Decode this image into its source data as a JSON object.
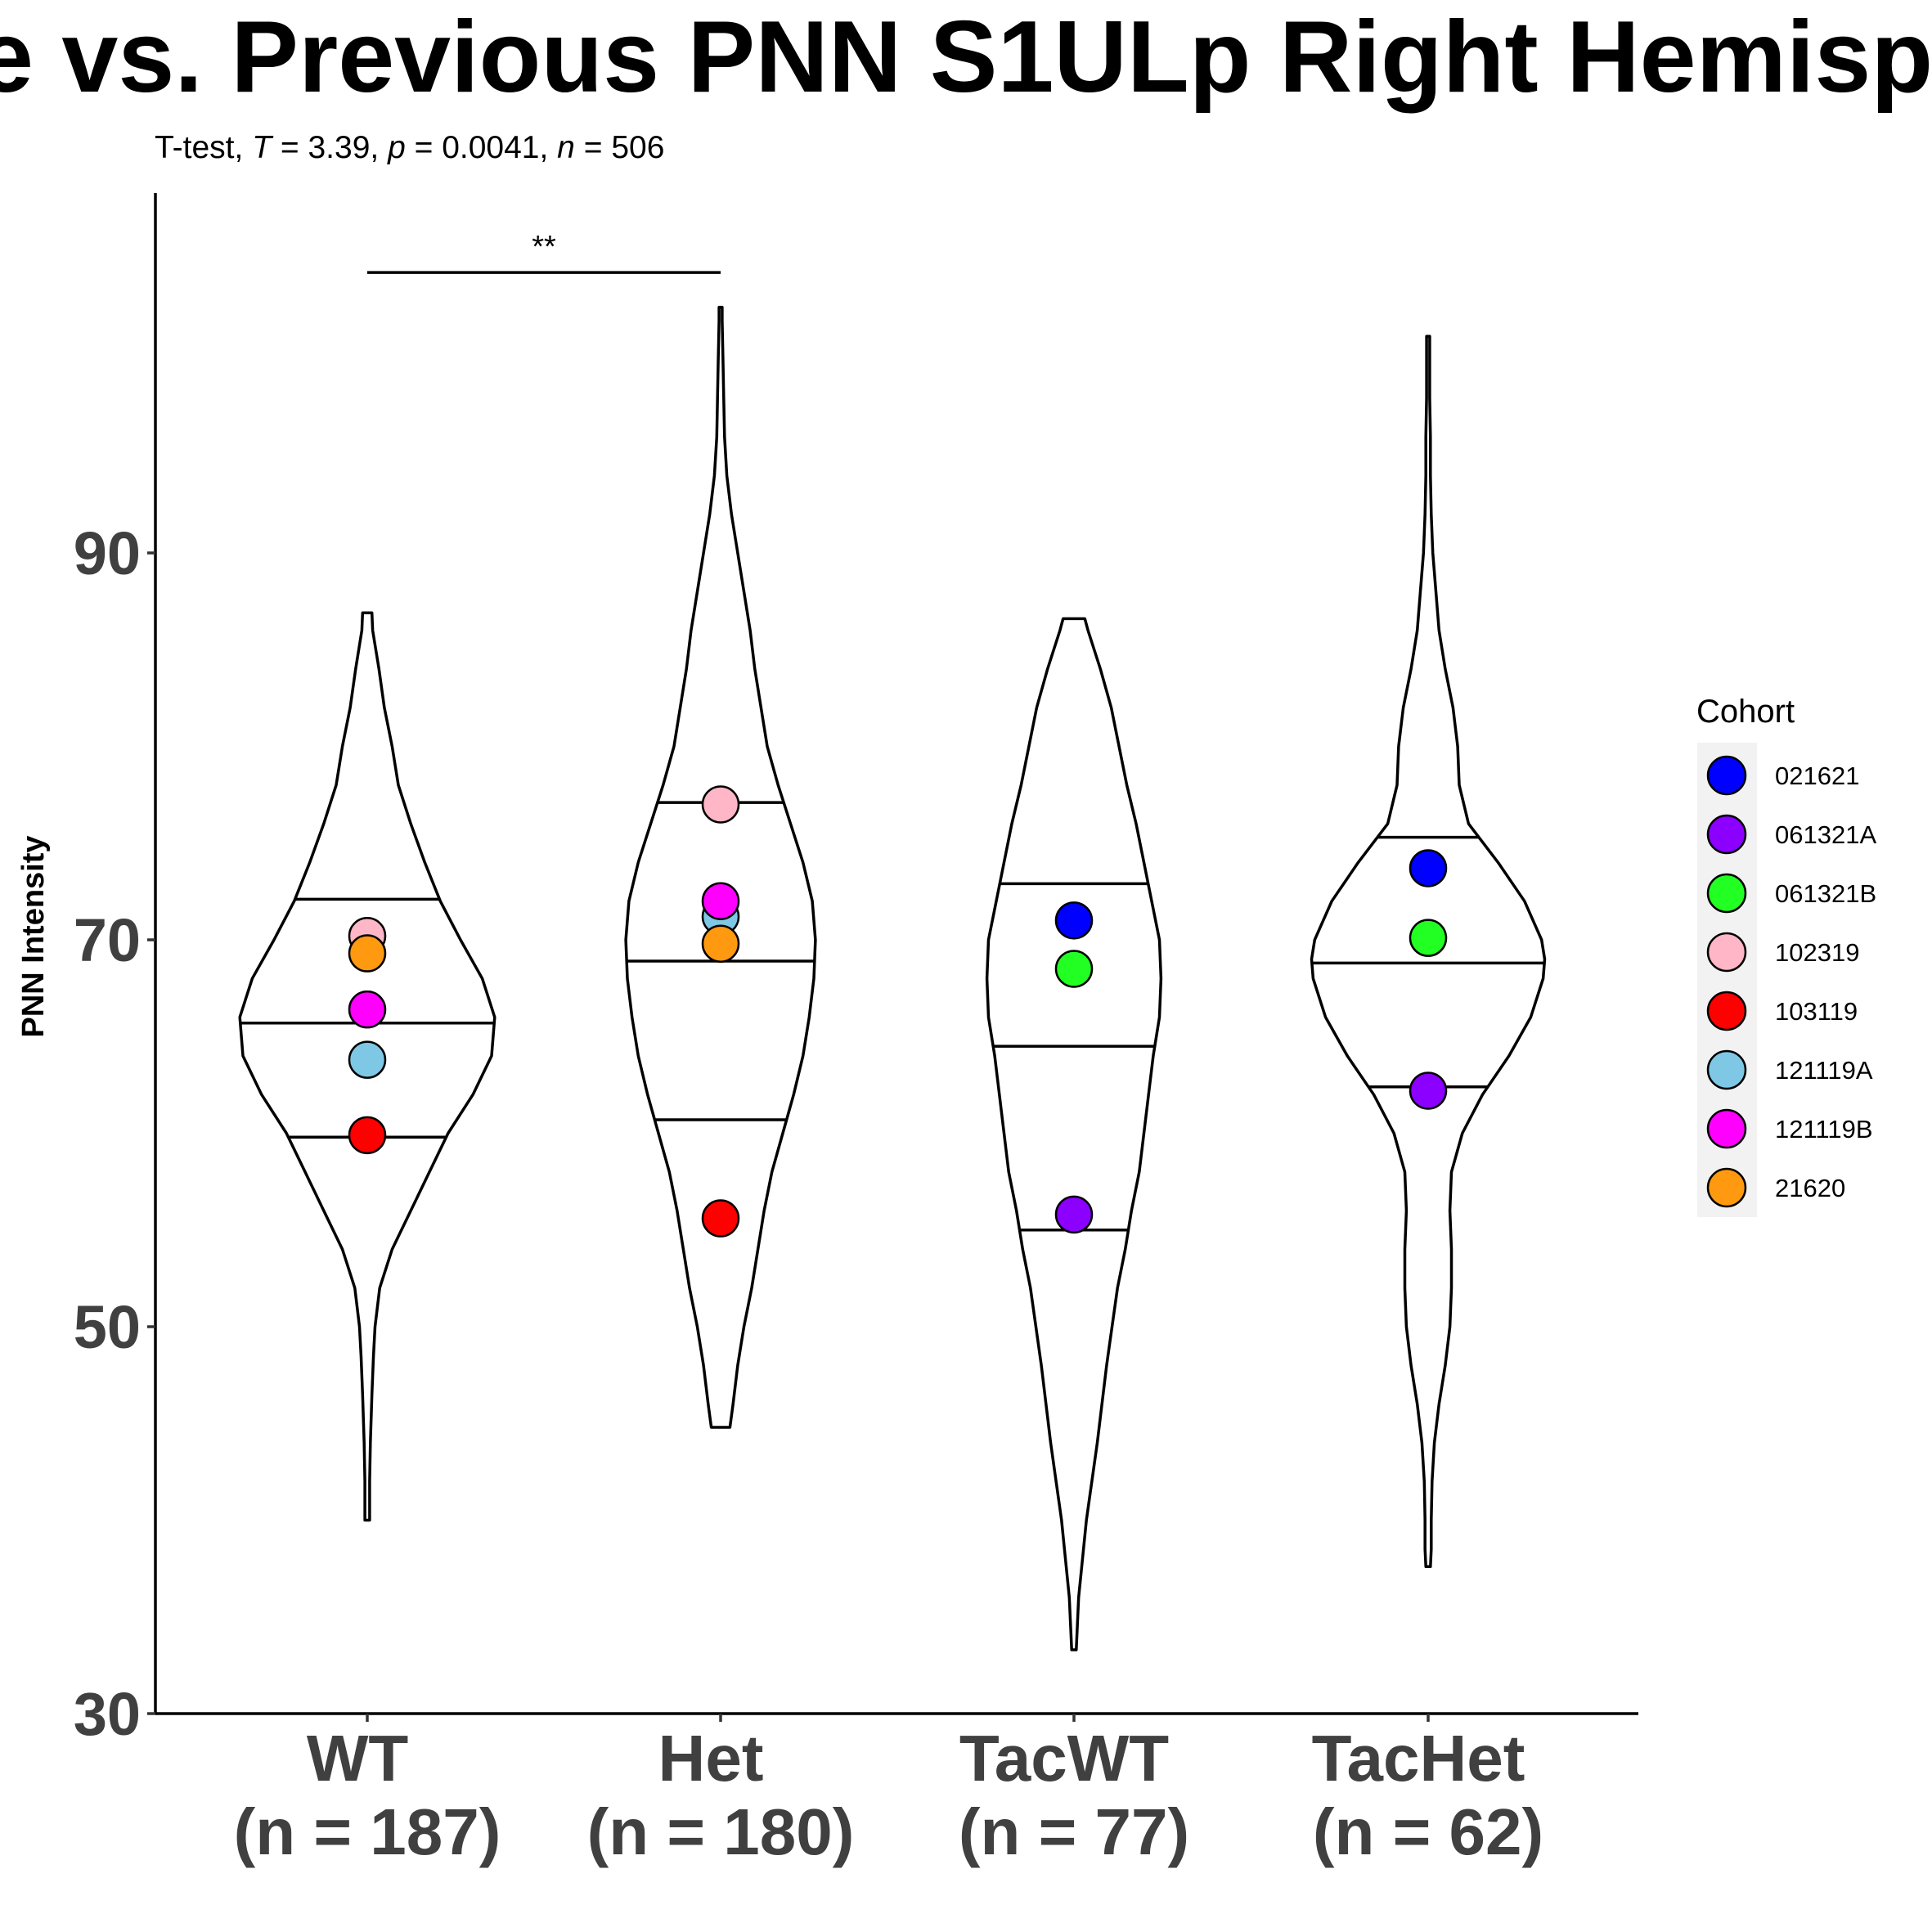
{
  "chart_data": {
    "type": "violin",
    "title": "e vs. Previous PNN S1ULp Right Hemisp",
    "subtitle": {
      "prefix": "T-test, ",
      "T_label": "T",
      "T_value": " = 3.39, ",
      "p_label": "p",
      "p_value": " = 0.0041, ",
      "n_label": "n",
      "n_value": " = 506"
    },
    "ylabel": "PNN Intensity",
    "xlabel": "",
    "ylim": [
      30,
      108
    ],
    "yticks": [
      30,
      50,
      70,
      90
    ],
    "categories": [
      {
        "name": "WT",
        "n_label": "(n = 187)"
      },
      {
        "name": "Het",
        "n_label": "(n = 180)"
      },
      {
        "name": "TacWT",
        "n_label": "(n = 77)"
      },
      {
        "name": "TacHet",
        "n_label": "(n = 62)"
      }
    ],
    "violins": [
      {
        "category": "WT",
        "quantiles": [
          59.8,
          65.7,
          72.1
        ],
        "profile": [
          [
            40.0,
            0.015
          ],
          [
            42.0,
            0.015
          ],
          [
            44.0,
            0.02
          ],
          [
            46.5,
            0.03
          ],
          [
            48.5,
            0.04
          ],
          [
            50.0,
            0.05
          ],
          [
            52.0,
            0.08
          ],
          [
            54.0,
            0.16
          ],
          [
            56.0,
            0.28
          ],
          [
            58.0,
            0.4
          ],
          [
            60.0,
            0.52
          ],
          [
            62.0,
            0.68
          ],
          [
            64.0,
            0.8
          ],
          [
            66.0,
            0.82
          ],
          [
            68.0,
            0.74
          ],
          [
            70.0,
            0.6
          ],
          [
            72.0,
            0.47
          ],
          [
            74.0,
            0.37
          ],
          [
            76.0,
            0.28
          ],
          [
            78.0,
            0.2
          ],
          [
            80.0,
            0.16
          ],
          [
            82.0,
            0.11
          ],
          [
            84.0,
            0.075
          ],
          [
            86.0,
            0.035
          ],
          [
            86.9,
            0.03
          ]
        ]
      },
      {
        "category": "Het",
        "quantiles": [
          60.7,
          68.9,
          77.1
        ],
        "profile": [
          [
            44.8,
            0.06
          ],
          [
            46.0,
            0.08
          ],
          [
            48.0,
            0.11
          ],
          [
            50.0,
            0.15
          ],
          [
            52.0,
            0.2
          ],
          [
            54.0,
            0.24
          ],
          [
            56.0,
            0.28
          ],
          [
            58.0,
            0.33
          ],
          [
            60.0,
            0.4
          ],
          [
            62.0,
            0.47
          ],
          [
            64.0,
            0.53
          ],
          [
            66.0,
            0.57
          ],
          [
            68.0,
            0.6
          ],
          [
            70.0,
            0.61
          ],
          [
            72.0,
            0.59
          ],
          [
            74.0,
            0.53
          ],
          [
            76.0,
            0.45
          ],
          [
            78.0,
            0.37
          ],
          [
            80.0,
            0.3
          ],
          [
            82.0,
            0.26
          ],
          [
            84.0,
            0.22
          ],
          [
            86.0,
            0.19
          ],
          [
            88.0,
            0.15
          ],
          [
            90.0,
            0.11
          ],
          [
            92.0,
            0.07
          ],
          [
            94.0,
            0.04
          ],
          [
            96.0,
            0.025
          ],
          [
            98.0,
            0.02
          ],
          [
            100.0,
            0.015
          ],
          [
            102.0,
            0.01
          ],
          [
            102.7,
            0.01
          ]
        ]
      },
      {
        "category": "TacWT",
        "quantiles": [
          55.0,
          64.5,
          72.9
        ],
        "profile": [
          [
            33.3,
            0.015
          ],
          [
            36.0,
            0.03
          ],
          [
            40.0,
            0.08
          ],
          [
            44.0,
            0.15
          ],
          [
            48.0,
            0.21
          ],
          [
            52.0,
            0.28
          ],
          [
            54.0,
            0.33
          ],
          [
            56.0,
            0.37
          ],
          [
            58.0,
            0.42
          ],
          [
            60.0,
            0.45
          ],
          [
            62.0,
            0.48
          ],
          [
            64.0,
            0.51
          ],
          [
            66.0,
            0.55
          ],
          [
            68.0,
            0.56
          ],
          [
            70.0,
            0.55
          ],
          [
            72.0,
            0.5
          ],
          [
            74.0,
            0.45
          ],
          [
            76.0,
            0.4
          ],
          [
            78.0,
            0.34
          ],
          [
            80.0,
            0.29
          ],
          [
            82.0,
            0.24
          ],
          [
            84.0,
            0.17
          ],
          [
            86.0,
            0.09
          ],
          [
            86.6,
            0.07
          ]
        ]
      },
      {
        "category": "TacHet",
        "quantiles": [
          62.4,
          68.8,
          75.3
        ],
        "profile": [
          [
            37.6,
            0.015
          ],
          [
            38.5,
            0.02
          ],
          [
            40.0,
            0.02
          ],
          [
            42.0,
            0.025
          ],
          [
            44.0,
            0.04
          ],
          [
            46.0,
            0.07
          ],
          [
            48.0,
            0.11
          ],
          [
            50.0,
            0.14
          ],
          [
            52.0,
            0.15
          ],
          [
            54.0,
            0.15
          ],
          [
            56.0,
            0.14
          ],
          [
            58.0,
            0.15
          ],
          [
            60.0,
            0.22
          ],
          [
            62.0,
            0.35
          ],
          [
            64.0,
            0.52
          ],
          [
            66.0,
            0.66
          ],
          [
            68.0,
            0.74
          ],
          [
            69.0,
            0.75
          ],
          [
            70.0,
            0.73
          ],
          [
            72.0,
            0.62
          ],
          [
            74.0,
            0.45
          ],
          [
            76.0,
            0.26
          ],
          [
            78.0,
            0.2
          ],
          [
            80.0,
            0.19
          ],
          [
            82.0,
            0.16
          ],
          [
            84.0,
            0.11
          ],
          [
            86.0,
            0.07
          ],
          [
            88.0,
            0.05
          ],
          [
            90.0,
            0.03
          ],
          [
            92.0,
            0.02
          ],
          [
            94.0,
            0.015
          ],
          [
            96.0,
            0.015
          ],
          [
            98.0,
            0.01
          ],
          [
            101.2,
            0.01
          ]
        ]
      }
    ],
    "points": [
      {
        "category": "WT",
        "cohort": "102319",
        "y": 70.2
      },
      {
        "category": "WT",
        "cohort": "21620",
        "y": 69.3
      },
      {
        "category": "WT",
        "cohort": "121119B",
        "y": 66.4
      },
      {
        "category": "WT",
        "cohort": "121119A",
        "y": 63.8
      },
      {
        "category": "WT",
        "cohort": "103119",
        "y": 59.9
      },
      {
        "category": "Het",
        "cohort": "102319",
        "y": 77.0
      },
      {
        "category": "Het",
        "cohort": "121119A",
        "y": 71.2
      },
      {
        "category": "Het",
        "cohort": "121119B",
        "y": 72.0
      },
      {
        "category": "Het",
        "cohort": "21620",
        "y": 69.8
      },
      {
        "category": "Het",
        "cohort": "103119",
        "y": 55.6
      },
      {
        "category": "TacWT",
        "cohort": "021621",
        "y": 71.0
      },
      {
        "category": "TacWT",
        "cohort": "061321B",
        "y": 68.5
      },
      {
        "category": "TacWT",
        "cohort": "061321A",
        "y": 55.8
      },
      {
        "category": "TacHet",
        "cohort": "021621",
        "y": 73.7
      },
      {
        "category": "TacHet",
        "cohort": "061321B",
        "y": 70.1
      },
      {
        "category": "TacHet",
        "cohort": "061321A",
        "y": 62.2
      }
    ],
    "significance": {
      "from": "WT",
      "to": "Het",
      "y": 104.5,
      "label": "**"
    },
    "legend": {
      "title": "Cohort",
      "placement": "right",
      "items": [
        {
          "label": "021621",
          "color": "#0000FF"
        },
        {
          "label": "061321A",
          "color": "#8B00FF"
        },
        {
          "label": "061321B",
          "color": "#22FF22"
        },
        {
          "label": "102319",
          "color": "#FFB6C6"
        },
        {
          "label": "103119",
          "color": "#FF0000"
        },
        {
          "label": "121119A",
          "color": "#7EC8E6"
        },
        {
          "label": "121119B",
          "color": "#FF00FF"
        },
        {
          "label": "21620",
          "color": "#FF9910"
        }
      ]
    },
    "grid": false
  }
}
